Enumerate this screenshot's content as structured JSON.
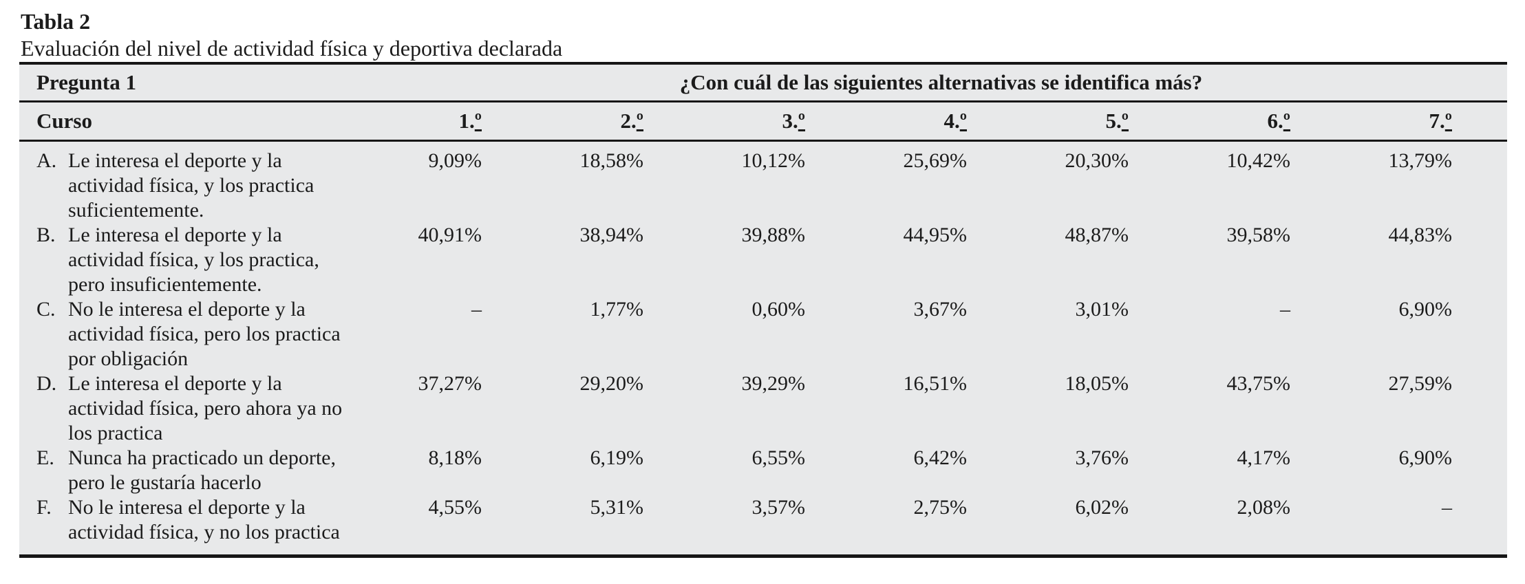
{
  "page": {
    "title": "Tabla 2",
    "subtitle": "Evaluación del nivel de actividad física y deportiva declarada"
  },
  "table": {
    "question": {
      "label": "Pregunta 1",
      "text": "¿Con cuál de las siguientes alternativas se identifica más?"
    },
    "row_header": "Curso",
    "course_columns": [
      {
        "num": "1.",
        "ord": "º"
      },
      {
        "num": "2.",
        "ord": "º"
      },
      {
        "num": "3.",
        "ord": "º"
      },
      {
        "num": "4.",
        "ord": "º"
      },
      {
        "num": "5.",
        "ord": "º"
      },
      {
        "num": "6.",
        "ord": "º"
      },
      {
        "num": "7.",
        "ord": "º"
      }
    ],
    "rows": [
      {
        "letter": "A.",
        "text": "Le interesa el deporte y la\nactividad física, y los practica\nsuficientemente.",
        "values": [
          "9,09%",
          "18,58%",
          "10,12%",
          "25,69%",
          "20,30%",
          "10,42%",
          "13,79%"
        ]
      },
      {
        "letter": "B.",
        "text": "Le interesa el deporte y la\nactividad física, y los practica,\npero insuficientemente.",
        "values": [
          "40,91%",
          "38,94%",
          "39,88%",
          "44,95%",
          "48,87%",
          "39,58%",
          "44,83%"
        ]
      },
      {
        "letter": "C.",
        "text": "No le interesa el deporte y la\nactividad física, pero los practica\npor obligación",
        "values": [
          "–",
          "1,77%",
          "0,60%",
          "3,67%",
          "3,01%",
          "–",
          "6,90%"
        ]
      },
      {
        "letter": "D.",
        "text": "Le interesa el deporte y la\nactividad física, pero ahora ya no\nlos practica",
        "values": [
          "37,27%",
          "29,20%",
          "39,29%",
          "16,51%",
          "18,05%",
          "43,75%",
          "27,59%"
        ]
      },
      {
        "letter": "E.",
        "text": "Nunca ha practicado un deporte,\npero le gustaría hacerlo",
        "values": [
          "8,18%",
          "6,19%",
          "6,55%",
          "6,42%",
          "3,76%",
          "4,17%",
          "6,90%"
        ]
      },
      {
        "letter": "F.",
        "text": "No le interesa el deporte y la\nactividad física, y no los practica",
        "values": [
          "4,55%",
          "5,31%",
          "3,57%",
          "2,75%",
          "6,02%",
          "2,08%",
          "–"
        ]
      }
    ]
  },
  "colors": {
    "table_background": "#e8e9ea",
    "rule": "#161616",
    "text": "#1b1b1b"
  }
}
